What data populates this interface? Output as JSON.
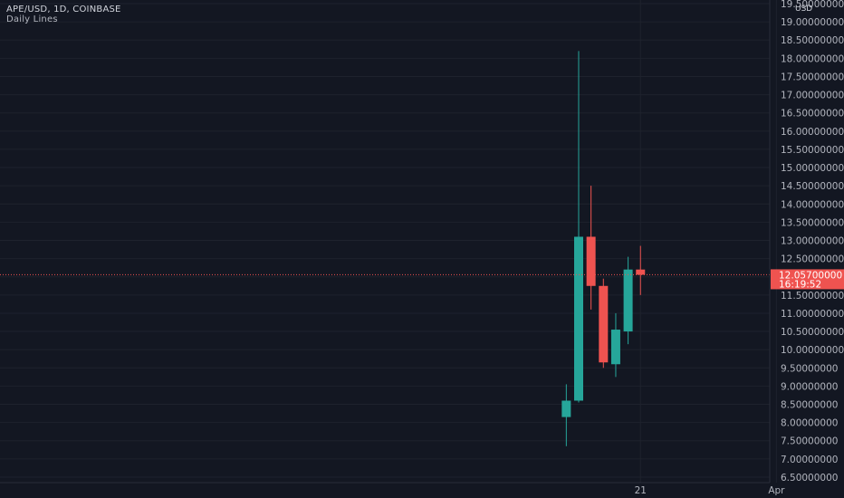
{
  "header": {
    "title": "APE/USD, 1D, COINBASE",
    "indicator": "Daily Lines"
  },
  "price_axis": {
    "currency": "USD"
  },
  "last_price": {
    "value": "12.05700000",
    "countdown": "16:19:52"
  },
  "colors": {
    "background": "#131722",
    "grid": "#1e222d",
    "up": "#26a69a",
    "down": "#ef5350",
    "text": "#b2b5be"
  },
  "chart_data": {
    "type": "candlestick",
    "y_ticks": [
      "6.50000000",
      "7.00000000",
      "7.50000000",
      "8.00000000",
      "8.50000000",
      "9.00000000",
      "9.50000000",
      "10.00000000",
      "10.50000000",
      "11.00000000",
      "11.50000000",
      "12.00000000",
      "12.50000000",
      "13.00000000",
      "13.50000000",
      "14.00000000",
      "14.50000000",
      "15.00000000",
      "15.50000000",
      "16.00000000",
      "16.50000000",
      "17.00000000",
      "17.50000000",
      "18.00000000",
      "18.50000000",
      "19.00000000",
      "19.50000000"
    ],
    "ylim": [
      6.35,
      19.6
    ],
    "x_labels": [
      {
        "label": "21",
        "day": 5
      },
      {
        "label": "Apr",
        "day": 16
      }
    ],
    "candles": [
      {
        "day": -1,
        "open": 8.15,
        "high": 9.05,
        "low": 7.35,
        "close": 8.6
      },
      {
        "day": 0,
        "open": 8.6,
        "high": 18.2,
        "low": 8.55,
        "close": 13.1
      },
      {
        "day": 1,
        "open": 13.1,
        "high": 14.5,
        "low": 11.1,
        "close": 11.75
      },
      {
        "day": 2,
        "open": 11.75,
        "high": 11.95,
        "low": 9.5,
        "close": 9.65
      },
      {
        "day": 3,
        "open": 9.6,
        "high": 11.0,
        "low": 9.25,
        "close": 10.55
      },
      {
        "day": 4,
        "open": 10.5,
        "high": 12.55,
        "low": 10.15,
        "close": 12.2
      },
      {
        "day": 5,
        "open": 12.2,
        "high": 12.85,
        "low": 11.5,
        "close": 12.057
      }
    ],
    "last_value": 12.057
  }
}
